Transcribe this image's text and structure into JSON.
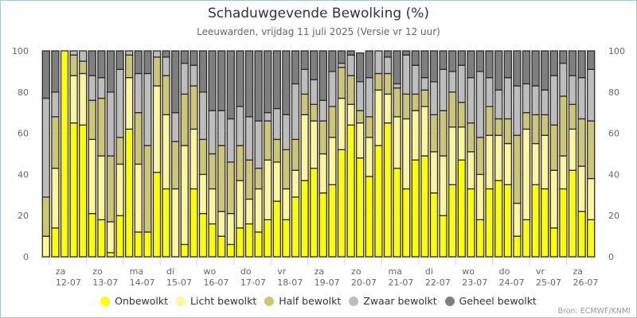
{
  "colors": {
    "onbewolkt": "#ffff00",
    "licht": "#fff59a",
    "half": "#cdc676",
    "zwaar": "#bdbdbd",
    "geheel": "#7f7f7f",
    "bar_border": "#2b2b2b",
    "day_band": "#f2f2f2",
    "grid": "#e6e6e6"
  },
  "chart_data": {
    "type": "bar",
    "stacked": true,
    "title": "Schaduwgevende Bewolking (%)",
    "subtitle": "Leeuwarden, vrijdag 11 juli 2025 (Versie vr 12 uur)",
    "xlabel": "",
    "ylabel": "",
    "ylim": [
      0,
      100
    ],
    "yticks": [
      0,
      20,
      40,
      60,
      80,
      100
    ],
    "grid": true,
    "legend_position": "bottom",
    "bars_per_day": 4,
    "day_labels": [
      {
        "day": "za",
        "date": "12-07"
      },
      {
        "day": "zo",
        "date": "13-07"
      },
      {
        "day": "ma",
        "date": "14-07"
      },
      {
        "day": "di",
        "date": "15-07"
      },
      {
        "day": "wo",
        "date": "16-07"
      },
      {
        "day": "do",
        "date": "17-07"
      },
      {
        "day": "vr",
        "date": "18-07"
      },
      {
        "day": "za",
        "date": "19-07"
      },
      {
        "day": "zo",
        "date": "20-07"
      },
      {
        "day": "ma",
        "date": "21-07"
      },
      {
        "day": "di",
        "date": "22-07"
      },
      {
        "day": "wo",
        "date": "23-07"
      },
      {
        "day": "do",
        "date": "24-07"
      },
      {
        "day": "vr",
        "date": "25-07"
      },
      {
        "day": "za",
        "date": "26-07"
      }
    ],
    "series": [
      {
        "name": "Onbewolkt",
        "key": "onbewolkt",
        "values": [
          0,
          14,
          100,
          65,
          64,
          21,
          18,
          2,
          20,
          62,
          12,
          12,
          41,
          33,
          0,
          6,
          33,
          21,
          16,
          10,
          6,
          14,
          16,
          12,
          18,
          27,
          18,
          29,
          37,
          43,
          31,
          35,
          52,
          64,
          48,
          39,
          54,
          65,
          43,
          33,
          47,
          49,
          31,
          20,
          35,
          47,
          33,
          18,
          33,
          37,
          35,
          10,
          18,
          35,
          33,
          14,
          33,
          42,
          22,
          18
        ]
      },
      {
        "name": "Licht bewolkt",
        "key": "licht",
        "values": [
          10,
          29,
          0,
          23,
          25,
          36,
          31,
          15,
          25,
          25,
          33,
          0,
          42,
          36,
          33,
          48,
          29,
          19,
          17,
          12,
          15,
          23,
          12,
          21,
          29,
          19,
          15,
          13,
          32,
          23,
          19,
          23,
          25,
          10,
          17,
          19,
          27,
          14,
          25,
          34,
          24,
          24,
          20,
          29,
          28,
          16,
          18,
          22,
          26,
          22,
          20,
          16,
          44,
          20,
          26,
          28,
          16,
          20,
          22,
          20
        ]
      },
      {
        "name": "Half bewolkt",
        "key": "half",
        "values": [
          19,
          25,
          0,
          10,
          6,
          19,
          28,
          32,
          13,
          11,
          25,
          42,
          14,
          19,
          23,
          25,
          21,
          17,
          17,
          32,
          25,
          17,
          19,
          10,
          19,
          11,
          19,
          15,
          10,
          8,
          16,
          15,
          15,
          14,
          6,
          10,
          8,
          10,
          14,
          12,
          8,
          8,
          18,
          22,
          17,
          12,
          14,
          18,
          14,
          8,
          12,
          33,
          8,
          14,
          10,
          22,
          29,
          12,
          23,
          28
        ]
      },
      {
        "name": "Zwaar bewolkt",
        "key": "zwaar",
        "values": [
          48,
          12,
          0,
          2,
          5,
          12,
          10,
          31,
          33,
          2,
          19,
          35,
          3,
          9,
          14,
          15,
          10,
          23,
          21,
          17,
          21,
          19,
          21,
          23,
          4,
          15,
          17,
          27,
          12,
          12,
          10,
          17,
          2,
          10,
          14,
          19,
          11,
          8,
          2,
          19,
          14,
          6,
          16,
          20,
          10,
          18,
          22,
          32,
          14,
          14,
          20,
          24,
          14,
          14,
          12,
          24,
          16,
          14,
          20,
          25
        ]
      },
      {
        "name": "Geheel bewolkt",
        "key": "geheel",
        "values": [
          23,
          20,
          0,
          0,
          0,
          12,
          13,
          20,
          9,
          0,
          11,
          11,
          0,
          3,
          30,
          6,
          7,
          20,
          29,
          29,
          33,
          27,
          32,
          34,
          30,
          28,
          31,
          16,
          9,
          14,
          24,
          10,
          6,
          2,
          14,
          13,
          0,
          3,
          16,
          2,
          7,
          13,
          15,
          9,
          10,
          7,
          13,
          10,
          13,
          19,
          13,
          17,
          16,
          17,
          19,
          12,
          6,
          12,
          13,
          9
        ]
      }
    ]
  },
  "legend": [
    {
      "label": "Onbewolkt",
      "key": "onbewolkt"
    },
    {
      "label": "Licht bewolkt",
      "key": "licht"
    },
    {
      "label": "Half bewolkt",
      "key": "half"
    },
    {
      "label": "Zwaar bewolkt",
      "key": "zwaar"
    },
    {
      "label": "Geheel bewolkt",
      "key": "geheel"
    }
  ],
  "credit": "Bron: ECMWF/KNMI"
}
